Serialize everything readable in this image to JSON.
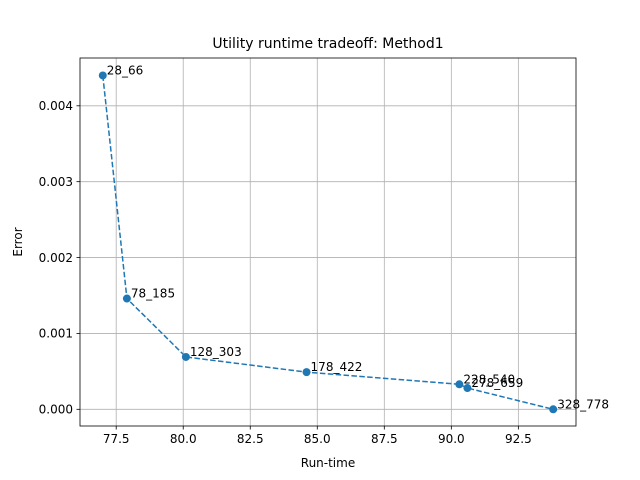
{
  "chart_data": {
    "type": "line",
    "title": "Utility runtime tradeoff: Method1",
    "xlabel": "Run-time",
    "ylabel": "Error",
    "xlim": [
      76.15,
      94.65
    ],
    "ylim": [
      -0.00022,
      0.00463
    ],
    "xticks": [
      77.5,
      80.0,
      82.5,
      85.0,
      87.5,
      90.0,
      92.5
    ],
    "xtick_labels": [
      "77.5",
      "80.0",
      "82.5",
      "85.0",
      "87.5",
      "90.0",
      "92.5"
    ],
    "yticks": [
      0.0,
      0.001,
      0.002,
      0.003,
      0.004
    ],
    "ytick_labels": [
      "0.000",
      "0.001",
      "0.002",
      "0.003",
      "0.004"
    ],
    "grid": true,
    "line_style": "dashed",
    "marker": "circle",
    "color": "#1f77b4",
    "series": [
      {
        "x": [
          77.0,
          77.9,
          80.1,
          84.6,
          90.3,
          90.6,
          93.8
        ],
        "y": [
          0.0044,
          0.00146,
          0.00069,
          0.00049,
          0.00033,
          0.00028,
          0.0
        ],
        "labels": [
          "28_66",
          "78_185",
          "128_303",
          "178_422",
          "228_540",
          "278_659",
          "328_778"
        ]
      }
    ]
  }
}
